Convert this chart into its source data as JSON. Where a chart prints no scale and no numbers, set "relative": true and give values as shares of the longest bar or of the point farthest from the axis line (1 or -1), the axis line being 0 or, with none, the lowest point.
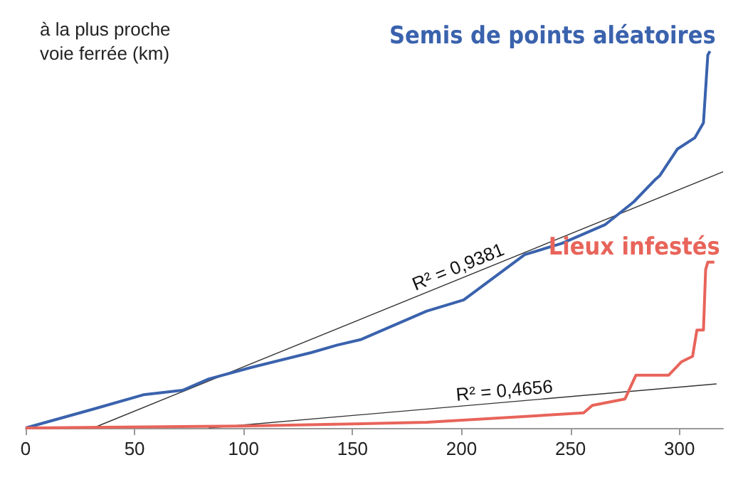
{
  "chart_data": {
    "type": "line",
    "relative": true,
    "ylabel": "à la plus proche\nvoie ferrée (km)",
    "xlim": [
      0,
      320
    ],
    "xticks": [
      0,
      50,
      100,
      150,
      200,
      250,
      300
    ],
    "grid": false,
    "marker": "none",
    "line_style": "solid",
    "series": [
      {
        "name": "Semis de points aléatoires",
        "color": "#3a62ad",
        "x": [
          0,
          31,
          54,
          72,
          84,
          103,
          131,
          143,
          154,
          184,
          201,
          229,
          246,
          266,
          279,
          289,
          291,
          299,
          307,
          311,
          313,
          314
        ],
        "values": [
          0,
          0.05,
          0.088,
          0.1,
          0.13,
          0.16,
          0.2,
          0.22,
          0.235,
          0.31,
          0.34,
          0.46,
          0.49,
          0.54,
          0.6,
          0.66,
          0.67,
          0.74,
          0.77,
          0.81,
          0.99,
          1
        ]
      },
      {
        "name": "Lieux infestés",
        "color": "#e8645a",
        "x": [
          0,
          100,
          184,
          256,
          260,
          275,
          280,
          295,
          301,
          306,
          308,
          311,
          312,
          313,
          316
        ],
        "values": [
          0,
          0.005,
          0.015,
          0.04,
          0.06,
          0.077,
          0.14,
          0.14,
          0.176,
          0.19,
          0.26,
          0.26,
          0.42,
          0.44,
          0.44
        ]
      },
      {
        "type": "line",
        "color": "#333333",
        "x": [
          31,
          320
        ],
        "values": [
          0,
          0.68
        ]
      },
      {
        "type": "line",
        "color": "#333333",
        "x": [
          84,
          317
        ],
        "values": [
          0,
          0.117
        ]
      }
    ],
    "annotations": [
      {
        "text": "R² = 0,9381",
        "x": 200,
        "y": 0.398
      },
      {
        "text": "R² = 0,4656",
        "x": 220,
        "y": 0.068
      }
    ]
  }
}
